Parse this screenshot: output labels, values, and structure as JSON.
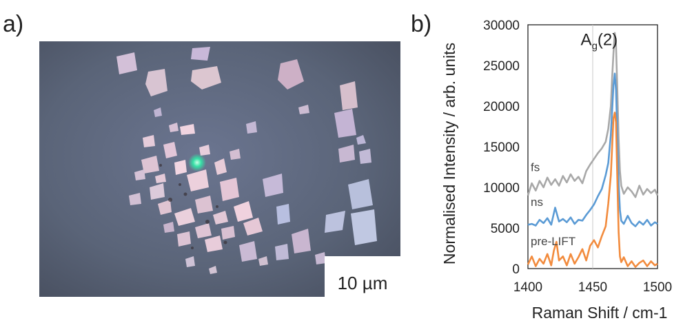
{
  "panel_labels": {
    "a": "a)",
    "b": "b)"
  },
  "micrograph": {
    "scale_bar_label": "10 µm",
    "colors": {
      "background": "#5a6478",
      "flake_pink": "#d8b8cc",
      "flake_blue": "#b8c4e4",
      "laser_spot": "#36e0a6"
    }
  },
  "chart_data": {
    "type": "line",
    "xlabel": "Raman Shift / cm-1",
    "ylabel": "Normalised Intensity / arb. units",
    "xlim": [
      1400,
      1500
    ],
    "ylim": [
      0,
      30000
    ],
    "xticks": [
      1400,
      1450,
      1500
    ],
    "yticks": [
      0,
      5000,
      10000,
      15000,
      20000,
      25000,
      30000
    ],
    "vline": 1450,
    "peak_annotation": {
      "base": "A",
      "sub": "g",
      "suffix": "(2)"
    },
    "grid": false,
    "series": [
      {
        "name": "fs",
        "color": "#a8a8a8",
        "x": [
          1400,
          1403,
          1406,
          1409,
          1412,
          1415,
          1418,
          1421,
          1424,
          1427,
          1430,
          1433,
          1436,
          1439,
          1442,
          1445,
          1448,
          1451,
          1454,
          1457,
          1460,
          1462,
          1464,
          1465,
          1466,
          1467,
          1468,
          1469,
          1470,
          1471,
          1472,
          1474,
          1477,
          1480,
          1483,
          1486,
          1489,
          1492,
          1495,
          1498,
          1500
        ],
        "y": [
          9000,
          10500,
          9600,
          10800,
          10000,
          11200,
          10300,
          11000,
          10200,
          11400,
          10600,
          11600,
          10800,
          11300,
          10500,
          12000,
          12800,
          13500,
          14200,
          14800,
          15600,
          17200,
          20000,
          23500,
          26500,
          29000,
          27500,
          22000,
          16000,
          12000,
          10200,
          9200,
          10000,
          9500,
          8800,
          10200,
          9100,
          9800,
          9300,
          9700,
          9000
        ]
      },
      {
        "name": "ns",
        "color": "#5b9bd5",
        "x": [
          1400,
          1403,
          1406,
          1409,
          1412,
          1415,
          1418,
          1421,
          1424,
          1427,
          1430,
          1433,
          1436,
          1439,
          1442,
          1445,
          1448,
          1451,
          1454,
          1457,
          1460,
          1462,
          1464,
          1465,
          1466,
          1467,
          1468,
          1469,
          1470,
          1471,
          1472,
          1474,
          1477,
          1480,
          1483,
          1486,
          1489,
          1492,
          1495,
          1498,
          1500
        ],
        "y": [
          5400,
          5500,
          5300,
          6000,
          5600,
          6200,
          5400,
          7500,
          5800,
          6100,
          5700,
          6300,
          5500,
          6000,
          5900,
          6600,
          7200,
          7900,
          8900,
          9800,
          11500,
          13000,
          16500,
          19500,
          22500,
          24000,
          22000,
          16500,
          10500,
          7200,
          5900,
          5500,
          6500,
          5600,
          5200,
          5800,
          5400,
          6000,
          5300,
          5700,
          5500
        ]
      },
      {
        "name": "pre-LIFT",
        "color": "#f28b3d",
        "x": [
          1400,
          1403,
          1406,
          1409,
          1412,
          1415,
          1418,
          1420,
          1422,
          1424,
          1427,
          1430,
          1433,
          1436,
          1439,
          1442,
          1445,
          1448,
          1451,
          1454,
          1457,
          1460,
          1462,
          1464,
          1465,
          1466,
          1467,
          1468,
          1469,
          1470,
          1471,
          1472,
          1474,
          1477,
          1480,
          1483,
          1486,
          1489,
          1492,
          1495,
          1498,
          1500
        ],
        "y": [
          500,
          1500,
          300,
          1200,
          600,
          1800,
          400,
          2200,
          3300,
          1000,
          1500,
          400,
          1800,
          600,
          1400,
          2400,
          1000,
          2800,
          3500,
          2600,
          4000,
          5200,
          8000,
          11500,
          15000,
          18500,
          19200,
          18000,
          11000,
          4500,
          1500,
          800,
          1400,
          300,
          900,
          200,
          700,
          1000,
          300,
          900,
          400,
          600
        ]
      }
    ]
  }
}
